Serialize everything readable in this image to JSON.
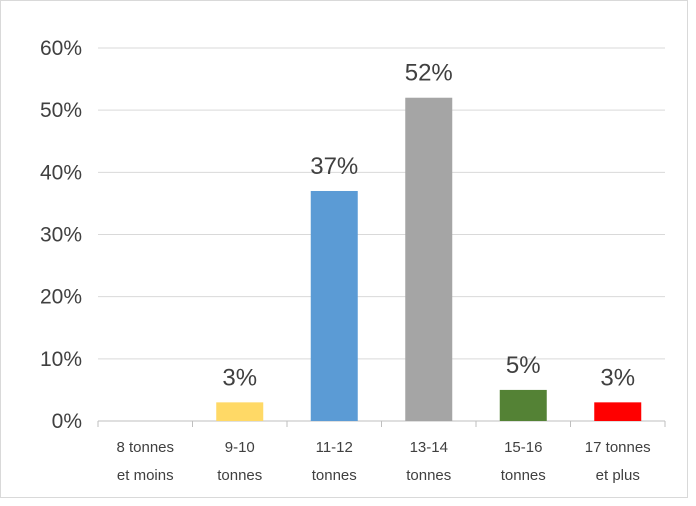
{
  "chart_data": {
    "type": "bar",
    "title": "",
    "xlabel": "",
    "ylabel": "",
    "categories": [
      [
        "8 tonnes",
        "et moins"
      ],
      [
        "9-10",
        "tonnes"
      ],
      [
        "11-12",
        "tonnes"
      ],
      [
        "13-14",
        "tonnes"
      ],
      [
        "15-16",
        "tonnes"
      ],
      [
        "17 tonnes",
        "et plus"
      ]
    ],
    "values": [
      0,
      3,
      37,
      52,
      5,
      3
    ],
    "data_labels": [
      "",
      "3%",
      "37%",
      "52%",
      "5%",
      "3%"
    ],
    "colors": [
      "#5b9bd5",
      "#ffd966",
      "#5b9bd5",
      "#a5a5a5",
      "#548235",
      "#ff0000"
    ],
    "ylim": [
      0,
      60
    ],
    "yticks": [
      "0%",
      "10%",
      "20%",
      "30%",
      "40%",
      "50%",
      "60%"
    ],
    "grid": true,
    "legend": "none"
  }
}
